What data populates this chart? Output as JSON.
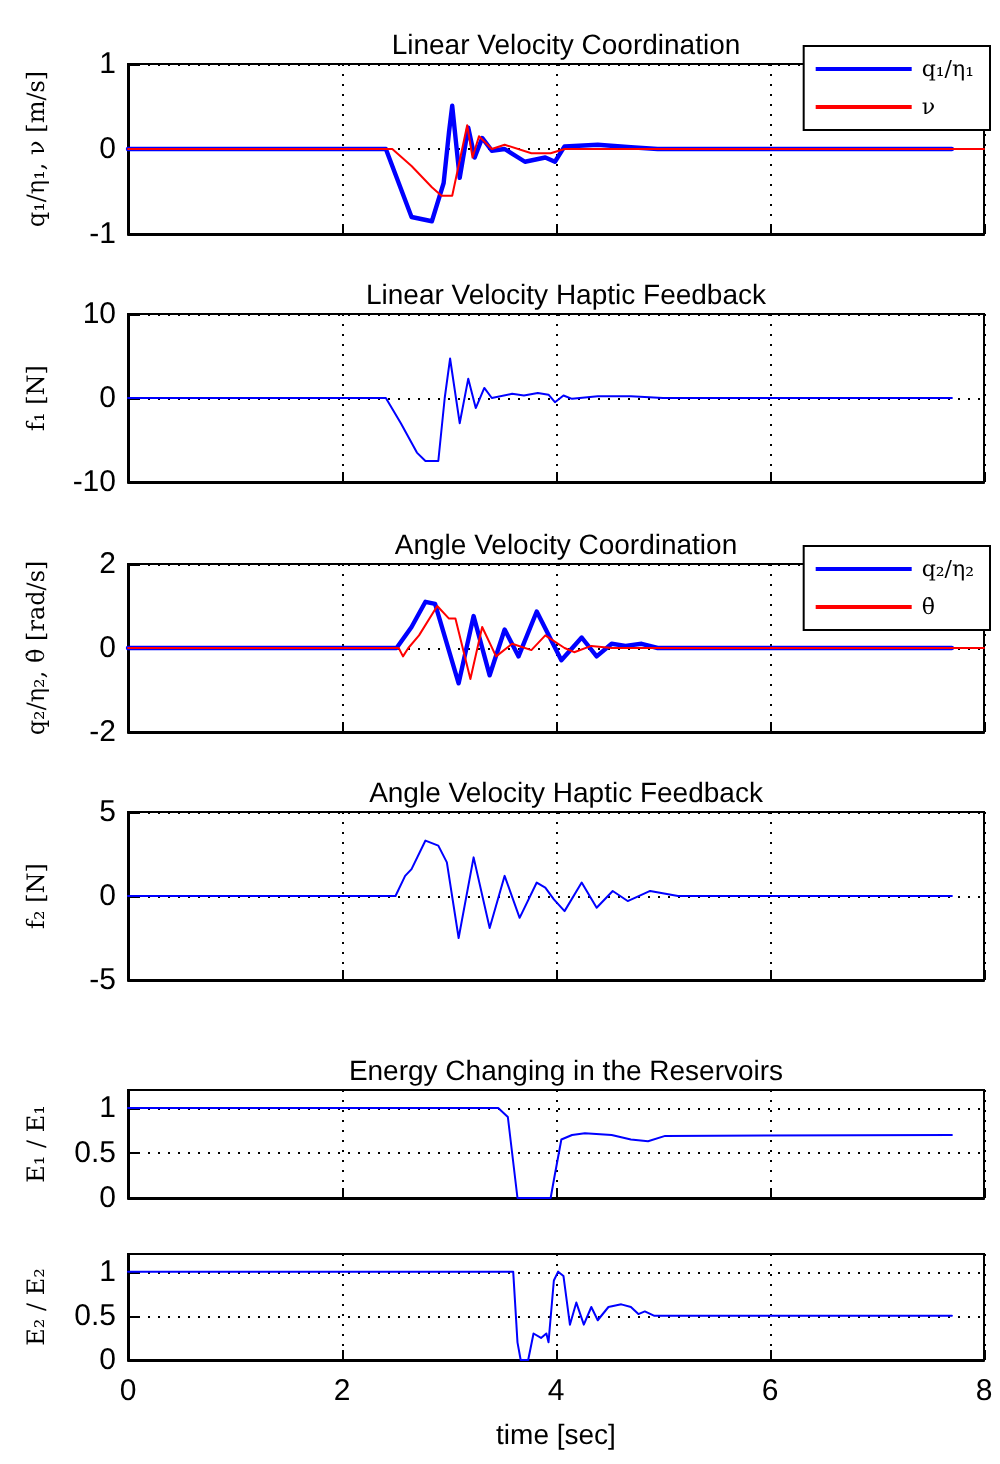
{
  "chart_data": [
    {
      "type": "line",
      "title": "Linear Velocity Coordination",
      "ylabel": "q₁/η₁, ν [m/s]",
      "xlim": [
        0,
        8
      ],
      "xticks": [
        0,
        2,
        4,
        6,
        8
      ],
      "ylim": [
        -1,
        1
      ],
      "yticks": [
        -1,
        0,
        1
      ],
      "tick_labels": "y",
      "grid": true,
      "legend": "top right",
      "marker": "none",
      "line_style": "solid",
      "series": [
        {
          "name": "q₁/η₁",
          "color": "#0000ff",
          "x": [
            0,
            2.41,
            2.5,
            2.65,
            2.84,
            2.95,
            3.0,
            3.03,
            3.1,
            3.18,
            3.24,
            3.31,
            3.4,
            3.52,
            3.71,
            3.9,
            3.99,
            4.08,
            4.39,
            4.7,
            4.95,
            7.7
          ],
          "values": [
            0,
            0,
            -0.3,
            -0.8,
            -0.85,
            -0.4,
            0.2,
            0.51,
            -0.34,
            0.25,
            -0.1,
            0.13,
            -0.02,
            0,
            -0.15,
            -0.1,
            -0.15,
            0.03,
            0.05,
            0.02,
            0,
            0
          ]
        },
        {
          "name": "ν",
          "color": "#ff0000",
          "x": [
            0,
            2.47,
            2.65,
            2.84,
            2.93,
            3.03,
            3.17,
            3.22,
            3.28,
            3.4,
            3.52,
            3.77,
            3.95,
            4.08,
            8
          ],
          "values": [
            0,
            0,
            -0.2,
            -0.45,
            -0.55,
            -0.55,
            0.28,
            -0.1,
            0.15,
            0,
            0.05,
            -0.05,
            -0.05,
            0,
            0
          ]
        }
      ]
    },
    {
      "type": "line",
      "title": "Linear Velocity Haptic Feedback",
      "ylabel": "f₁ [N]",
      "xlim": [
        0,
        8
      ],
      "xticks": [
        0,
        2,
        4,
        6,
        8
      ],
      "ylim": [
        -10,
        10
      ],
      "yticks": [
        -10,
        0,
        10
      ],
      "tick_labels": "y",
      "grid": true,
      "marker": "none",
      "line_style": "solid",
      "series": [
        {
          "color": "#0000ff",
          "x": [
            0,
            2.41,
            2.55,
            2.7,
            2.78,
            2.9,
            2.96,
            3.01,
            3.1,
            3.18,
            3.25,
            3.33,
            3.4,
            3.59,
            3.7,
            3.83,
            3.93,
            3.99,
            4.07,
            4.15,
            4.39,
            4.7,
            5.0,
            7.7
          ],
          "values": [
            0,
            0,
            -3,
            -6.5,
            -7.5,
            -7.5,
            0,
            4.7,
            -3,
            2.3,
            -1.2,
            1.2,
            0,
            0.5,
            0.3,
            0.6,
            0.4,
            -0.5,
            0.3,
            -0.1,
            0.2,
            0.2,
            0,
            0
          ]
        }
      ]
    },
    {
      "type": "line",
      "title": "Angle Velocity Coordination",
      "ylabel": "q₂/η₂, θ̇ [rad/s]",
      "xlim": [
        0,
        8
      ],
      "xticks": [
        0,
        2,
        4,
        6,
        8
      ],
      "ylim": [
        -2,
        2
      ],
      "yticks": [
        -2,
        0,
        2
      ],
      "tick_labels": "y",
      "grid": true,
      "legend": "top right",
      "marker": "none",
      "line_style": "solid",
      "series": [
        {
          "name": "q₂/η₂",
          "color": "#0000ff",
          "x": [
            0,
            2.51,
            2.65,
            2.78,
            2.87,
            3.09,
            3.23,
            3.38,
            3.52,
            3.65,
            3.82,
            4.05,
            4.24,
            4.38,
            4.52,
            4.65,
            4.8,
            4.95,
            7.7
          ],
          "values": [
            0,
            0,
            0.5,
            1.1,
            1.05,
            -0.84,
            0.76,
            -0.65,
            0.44,
            -0.2,
            0.87,
            -0.29,
            0.25,
            -0.2,
            0.1,
            0.05,
            0.1,
            0,
            0
          ]
        },
        {
          "name": "θ̇",
          "color": "#ff0000",
          "x": [
            0,
            2.53,
            2.57,
            2.62,
            2.72,
            2.89,
            3.0,
            3.06,
            3.2,
            3.31,
            3.44,
            3.59,
            3.77,
            3.9,
            4.08,
            4.17,
            4.33,
            4.52,
            8
          ],
          "values": [
            0,
            0,
            -0.2,
            0,
            0.3,
            1.0,
            0.7,
            0.7,
            -0.74,
            0.5,
            -0.2,
            0.1,
            -0.05,
            0.3,
            0,
            -0.1,
            0.05,
            0,
            0
          ]
        }
      ]
    },
    {
      "type": "line",
      "title": "Angle Velocity Haptic Feedback",
      "ylabel": "f₂ [N]",
      "xlim": [
        0,
        8
      ],
      "xticks": [
        0,
        2,
        4,
        6,
        8
      ],
      "ylim": [
        -5,
        5
      ],
      "yticks": [
        -5,
        0,
        5
      ],
      "tick_labels": "y",
      "grid": true,
      "marker": "none",
      "line_style": "solid",
      "series": [
        {
          "color": "#0000ff",
          "x": [
            0,
            2.5,
            2.59,
            2.65,
            2.78,
            2.9,
            2.98,
            3.09,
            3.23,
            3.38,
            3.52,
            3.66,
            3.82,
            3.9,
            3.98,
            4.08,
            4.24,
            4.38,
            4.53,
            4.67,
            4.88,
            5.14,
            7.7
          ],
          "values": [
            0,
            0,
            1.2,
            1.6,
            3.3,
            3.0,
            2.0,
            -2.5,
            2.3,
            -1.9,
            1.2,
            -1.3,
            0.8,
            0.5,
            -0.2,
            -0.9,
            0.8,
            -0.7,
            0.3,
            -0.3,
            0.3,
            0,
            0
          ]
        }
      ]
    },
    {
      "type": "line",
      "title": "Energy Changing in the Reservoirs",
      "ylabel": "E₁ / E₁",
      "xlim": [
        0,
        8
      ],
      "xticks": [
        0,
        2,
        4,
        6,
        8
      ],
      "ylim": [
        0,
        1.2
      ],
      "yticks": [
        0,
        0.5,
        1
      ],
      "tick_labels": "y",
      "grid": true,
      "marker": "none",
      "line_style": "solid",
      "series": [
        {
          "color": "#0000ff",
          "x": [
            0,
            3.46,
            3.55,
            3.64,
            3.95,
            3.98,
            4.05,
            4.15,
            4.27,
            4.52,
            4.7,
            4.86,
            5.02,
            7.7
          ],
          "values": [
            1,
            1,
            0.9,
            0,
            0,
            0.2,
            0.65,
            0.7,
            0.72,
            0.7,
            0.65,
            0.63,
            0.69,
            0.7
          ]
        }
      ]
    },
    {
      "type": "line",
      "xlabel": "time [sec]",
      "ylabel": "E₂ / E₂",
      "xlim": [
        0,
        8
      ],
      "xticks": [
        0,
        2,
        4,
        6,
        8
      ],
      "ylim": [
        0,
        1.2
      ],
      "yticks": [
        0,
        0.5,
        1
      ],
      "grid": true,
      "marker": "none",
      "line_style": "solid",
      "series": [
        {
          "color": "#0000ff",
          "x": [
            0,
            3.6,
            3.64,
            3.67,
            3.74,
            3.79,
            3.86,
            3.91,
            3.93,
            3.98,
            4.02,
            4.07,
            4.13,
            4.19,
            4.26,
            4.33,
            4.39,
            4.49,
            4.61,
            4.7,
            4.77,
            4.83,
            4.92,
            7.7
          ],
          "values": [
            1,
            1,
            0.2,
            0,
            0,
            0.3,
            0.25,
            0.3,
            0.2,
            0.9,
            1,
            0.95,
            0.4,
            0.65,
            0.4,
            0.6,
            0.45,
            0.6,
            0.63,
            0.6,
            0.52,
            0.55,
            0.5,
            0.5
          ]
        }
      ]
    }
  ]
}
